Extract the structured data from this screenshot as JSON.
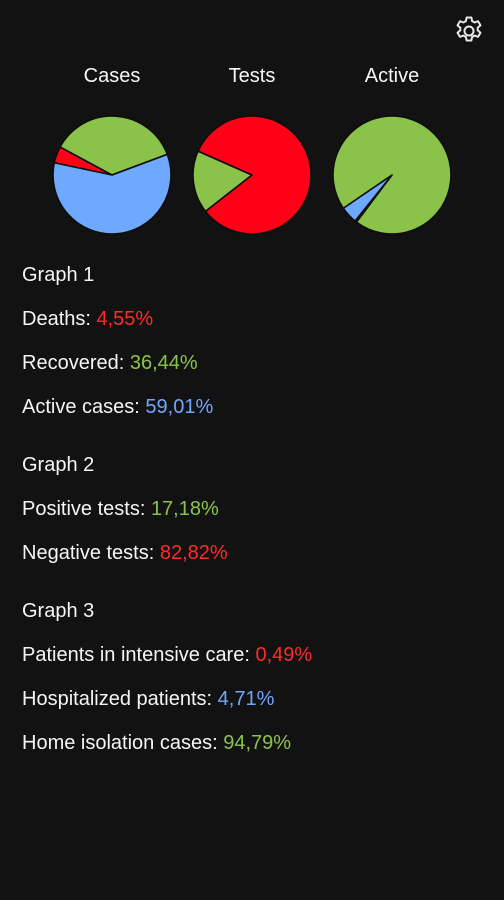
{
  "colors": {
    "background": "#121212",
    "red": "#ff0016",
    "green": "#8bc34a",
    "blue": "#6ea8ff",
    "text": "#f5f5f5"
  },
  "header": {
    "settings_icon": "gear-icon"
  },
  "chart_data": [
    {
      "type": "pie",
      "title": "Cases",
      "slices": [
        {
          "label": "Deaths",
          "value": 4.55,
          "color": "#ff0016"
        },
        {
          "label": "Recovered",
          "value": 36.44,
          "color": "#8bc34a"
        },
        {
          "label": "Active cases",
          "value": 59.01,
          "color": "#6ea8ff"
        }
      ]
    },
    {
      "type": "pie",
      "title": "Tests",
      "slices": [
        {
          "label": "Positive tests",
          "value": 17.18,
          "color": "#8bc34a"
        },
        {
          "label": "Negative tests",
          "value": 82.82,
          "color": "#ff0016"
        }
      ]
    },
    {
      "type": "pie",
      "title": "Active",
      "slices": [
        {
          "label": "Patients in intensive care",
          "value": 0.49,
          "color": "#ff0016"
        },
        {
          "label": "Hospitalized patients",
          "value": 4.71,
          "color": "#6ea8ff"
        },
        {
          "label": "Home isolation cases",
          "value": 94.79,
          "color": "#8bc34a"
        }
      ]
    }
  ],
  "groups": [
    {
      "title": "Graph 1",
      "rows": [
        {
          "label": "Deaths: ",
          "value": "4,55%",
          "color": "#ff2a2a"
        },
        {
          "label": "Recovered: ",
          "value": "36,44%",
          "color": "#8bc34a"
        },
        {
          "label": "Active cases: ",
          "value": "59,01%",
          "color": "#6ea8ff"
        }
      ]
    },
    {
      "title": "Graph 2",
      "rows": [
        {
          "label": "Positive tests: ",
          "value": "17,18%",
          "color": "#8bc34a"
        },
        {
          "label": "Negative tests: ",
          "value": "82,82%",
          "color": "#ff2a2a"
        }
      ]
    },
    {
      "title": "Graph 3",
      "rows": [
        {
          "label": "Patients in intensive care: ",
          "value": "0,49%",
          "color": "#ff2a2a"
        },
        {
          "label": "Hospitalized patients: ",
          "value": "4,71%",
          "color": "#6ea8ff"
        },
        {
          "label": "Home isolation cases: ",
          "value": "94,79%",
          "color": "#8bc34a"
        }
      ]
    }
  ]
}
